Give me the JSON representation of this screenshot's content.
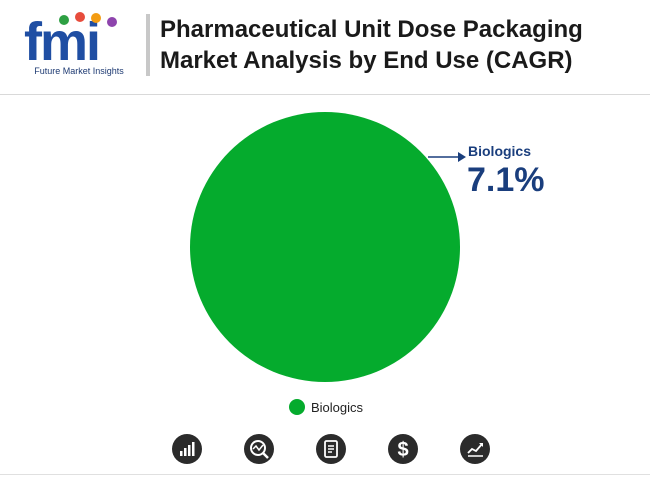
{
  "header": {
    "logo_text": "fmi",
    "logo_caption": "Future Market Insights",
    "title": "Pharmaceutical Unit Dose Packaging Market Analysis by End Use (CAGR)"
  },
  "chart_data": {
    "type": "pie",
    "title": "Pharmaceutical Unit Dose Packaging Market Analysis by End Use (CAGR)",
    "categories": [
      "Biologics"
    ],
    "values": [
      100
    ],
    "colors": [
      "#05ab2d"
    ],
    "callout": {
      "label": "Biologics",
      "value": "7.1%"
    },
    "legend": {
      "position": "bottom",
      "entries": [
        "Biologics"
      ]
    }
  },
  "colors": {
    "slice": "#05ab2d",
    "callout_text": "#1a3e7d",
    "icon_bg": "#2b2b2b"
  },
  "footer_icons": [
    "bar-growth-icon",
    "analysis-search-icon",
    "report-document-icon",
    "dollar-icon",
    "trend-chart-icon"
  ]
}
